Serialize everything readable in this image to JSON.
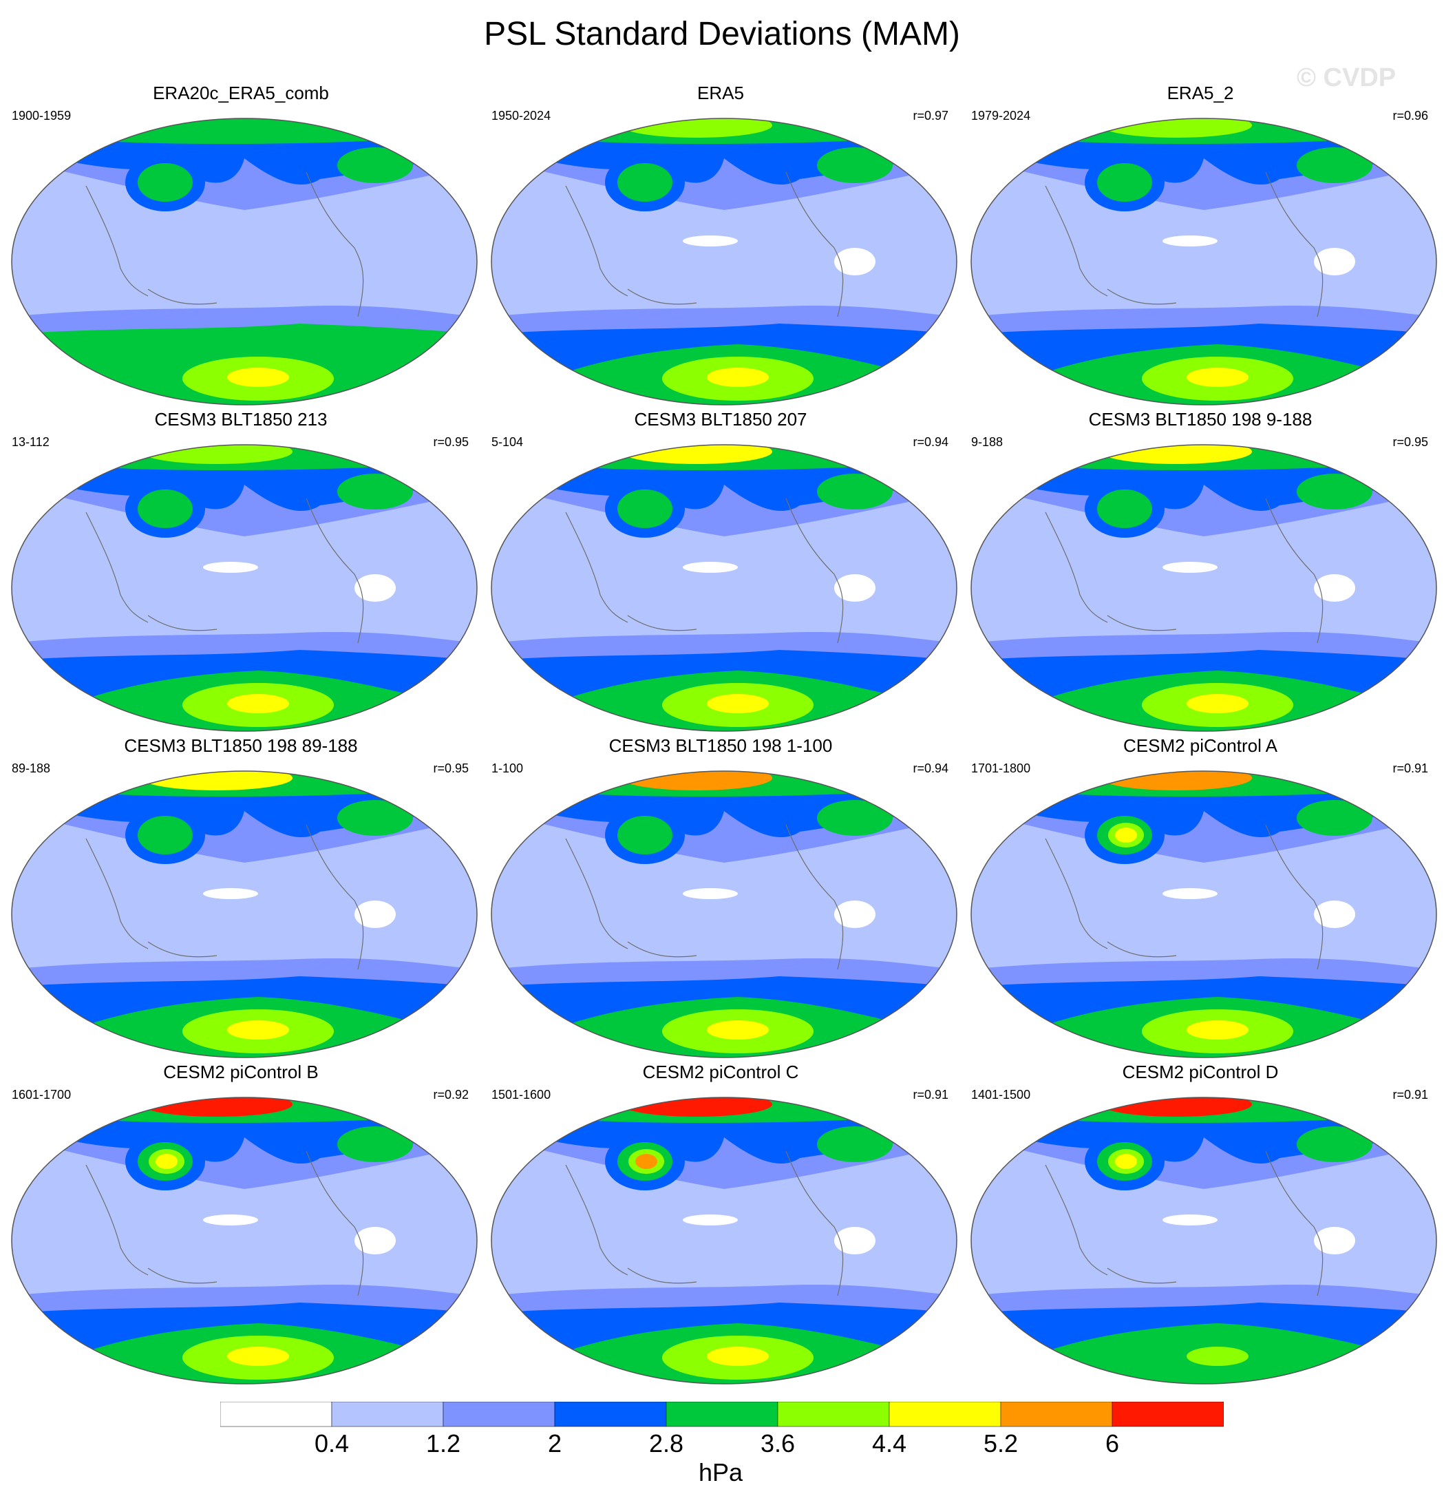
{
  "title": "PSL Standard Deviations (MAM)",
  "watermark": "© CVDP",
  "panels": [
    {
      "title": "ERA20c_ERA5_comb",
      "period": "1900-1959",
      "r": "",
      "levels": {
        "arctic": 4,
        "npac": 4,
        "so": 4,
        "ant": 5,
        "nhbelt": 2,
        "trop": 1,
        "warm": 0
      }
    },
    {
      "title": "ERA5",
      "period": "1950-2024",
      "r": "r=0.97",
      "levels": {
        "arctic": 5,
        "npac": 4,
        "so": 3,
        "ant": 5,
        "nhbelt": 2,
        "trop": 1,
        "warm": 1
      }
    },
    {
      "title": "ERA5_2",
      "period": "1979-2024",
      "r": "r=0.96",
      "levels": {
        "arctic": 5,
        "npac": 4,
        "so": 3,
        "ant": 5,
        "nhbelt": 2,
        "trop": 1,
        "warm": 1
      }
    },
    {
      "title": "CESM3 BLT1850 213",
      "period": "13-112",
      "r": "r=0.95",
      "levels": {
        "arctic": 5,
        "npac": 4,
        "so": 3,
        "ant": 5,
        "nhbelt": 2,
        "trop": 1,
        "warm": 1
      }
    },
    {
      "title": "CESM3 BLT1850 207",
      "period": "5-104",
      "r": "r=0.94",
      "levels": {
        "arctic": 6,
        "npac": 4,
        "so": 3,
        "ant": 5,
        "nhbelt": 2,
        "trop": 1,
        "warm": 1
      }
    },
    {
      "title": "CESM3 BLT1850 198 9-188",
      "period": "9-188",
      "r": "r=0.95",
      "levels": {
        "arctic": 6,
        "npac": 4,
        "so": 3,
        "ant": 5,
        "nhbelt": 2,
        "trop": 1,
        "warm": 1
      }
    },
    {
      "title": "CESM3 BLT1850 198 89-188",
      "period": "89-188",
      "r": "r=0.95",
      "levels": {
        "arctic": 6,
        "npac": 4,
        "so": 3,
        "ant": 5,
        "nhbelt": 2,
        "trop": 1,
        "warm": 1
      }
    },
    {
      "title": "CESM3 BLT1850 198 1-100",
      "period": "1-100",
      "r": "r=0.94",
      "levels": {
        "arctic": 7,
        "npac": 4,
        "so": 3,
        "ant": 5,
        "nhbelt": 2,
        "trop": 1,
        "warm": 1
      }
    },
    {
      "title": "CESM2 piControl A",
      "period": "1701-1800",
      "r": "r=0.91",
      "levels": {
        "arctic": 7,
        "npac": 6,
        "so": 3,
        "ant": 5,
        "nhbelt": 2,
        "trop": 1,
        "warm": 1
      }
    },
    {
      "title": "CESM2 piControl B",
      "period": "1601-1700",
      "r": "r=0.92",
      "levels": {
        "arctic": 8,
        "npac": 6,
        "so": 3,
        "ant": 5,
        "nhbelt": 2,
        "trop": 1,
        "warm": 1
      }
    },
    {
      "title": "CESM2 piControl C",
      "period": "1501-1600",
      "r": "r=0.91",
      "levels": {
        "arctic": 8,
        "npac": 7,
        "so": 3,
        "ant": 5,
        "nhbelt": 2,
        "trop": 1,
        "warm": 1
      }
    },
    {
      "title": "CESM2 piControl D",
      "period": "1401-1500",
      "r": "r=0.91",
      "levels": {
        "arctic": 8,
        "npac": 6,
        "so": 3,
        "ant": 4,
        "nhbelt": 2,
        "trop": 1,
        "warm": 1
      }
    }
  ],
  "colorbar": {
    "levels": [
      "0.4",
      "1.2",
      "2",
      "2.8",
      "3.6",
      "4.4",
      "5.2",
      "6"
    ],
    "colors": [
      "#ffffff",
      "#b4c4ff",
      "#7e93ff",
      "#005dff",
      "#00c83c",
      "#8cff00",
      "#ffff00",
      "#ff9600",
      "#ff1900"
    ],
    "units": "hPa"
  }
}
